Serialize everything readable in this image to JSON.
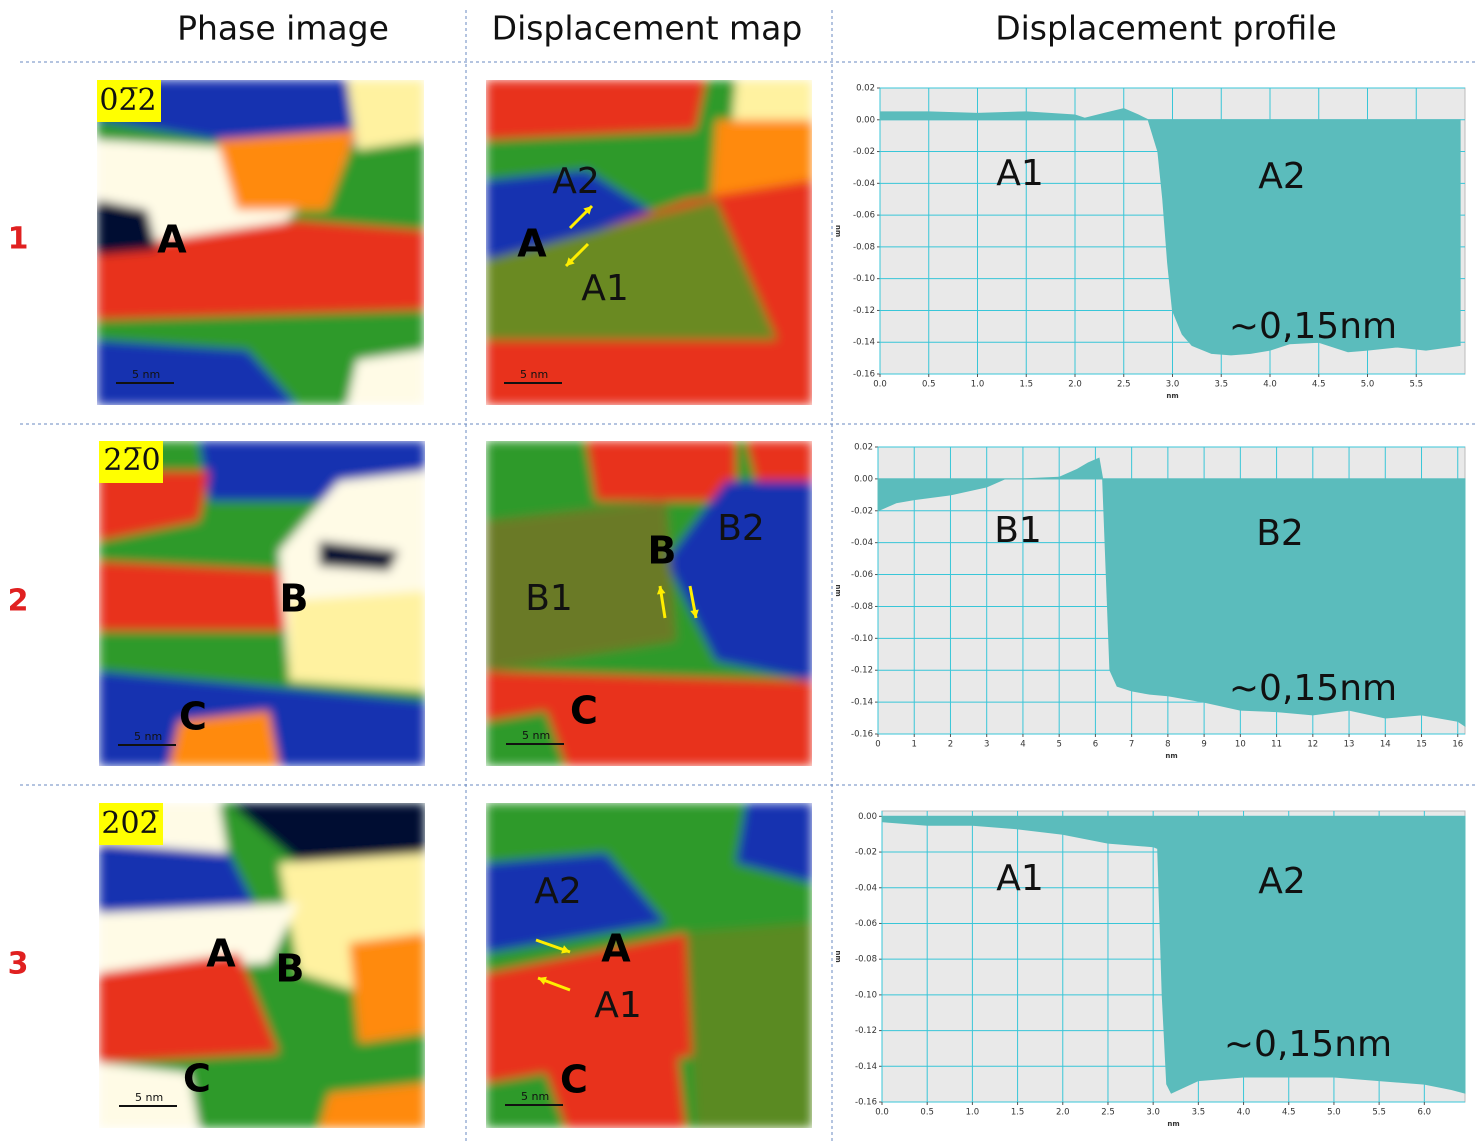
{
  "header": {
    "columns": [
      "Phase image",
      "Displacement map",
      "Displacement profile"
    ]
  },
  "rows": [
    {
      "label": "1",
      "phase_image": {
        "labels": [
          "02̅2",
          "A",
          "5 nm"
        ]
      },
      "displacement_map": {
        "labels": [
          "A2",
          "A",
          "A1",
          "5 nm"
        ]
      }
    },
    {
      "label": "2",
      "phase_image": {
        "labels": [
          "22̅0",
          "B",
          "C",
          "5 nm"
        ]
      },
      "displacement_map": {
        "labels": [
          "B2",
          "B",
          "B1",
          "C",
          "5 nm"
        ]
      }
    },
    {
      "label": "3",
      "phase_image": {
        "labels": [
          "202̅",
          "A",
          "B",
          "C",
          "5 nm"
        ]
      },
      "displacement_map": {
        "labels": [
          "A2",
          "A",
          "A1",
          "C",
          "5 nm"
        ]
      }
    }
  ],
  "chart_data": [
    {
      "type": "area",
      "color": "#5bbcbc",
      "grid": true,
      "x_label": "nm",
      "y_label": "nm",
      "annotations": [
        "A1",
        "A2",
        "~0,15nm"
      ],
      "x": [
        0,
        0.5,
        1.0,
        1.5,
        2.0,
        2.1,
        2.3,
        2.5,
        2.65,
        2.75,
        2.85,
        2.9,
        2.95,
        3.0,
        3.1,
        3.2,
        3.4,
        3.6,
        3.8,
        4.0,
        4.2,
        4.5,
        4.8,
        5.0,
        5.3,
        5.6,
        5.95
      ],
      "values": [
        0.005,
        0.005,
        0.004,
        0.005,
        0.003,
        0.001,
        0.004,
        0.007,
        0.003,
        0.0,
        -0.02,
        -0.05,
        -0.09,
        -0.12,
        -0.135,
        -0.142,
        -0.147,
        -0.148,
        -0.147,
        -0.145,
        -0.141,
        -0.14,
        -0.146,
        -0.145,
        -0.143,
        -0.145,
        -0.142
      ],
      "xlim": [
        0,
        6
      ],
      "ylim": [
        -0.16,
        0.02
      ],
      "xticks": [
        {
          "value": 0,
          "label": "0.0"
        },
        0.5,
        {
          "value": 1,
          "label": "1.0"
        },
        1.5,
        {
          "value": 2,
          "label": "2.0"
        },
        2.5,
        {
          "value": 3,
          "label": "3.0"
        },
        3.5,
        {
          "value": 4,
          "label": "4.0"
        },
        4.5,
        {
          "value": 5,
          "label": "5.0"
        },
        5.5
      ],
      "yticks": [
        0.02,
        {
          "value": 0,
          "label": "0.00"
        },
        -0.02,
        -0.04,
        -0.06,
        -0.08,
        {
          "value": -0.1,
          "label": "-0.10"
        },
        -0.12,
        -0.14,
        -0.16
      ]
    },
    {
      "type": "area",
      "color": "#5bbcbc",
      "grid": true,
      "x_label": "nm",
      "y_label": "nm",
      "annotations": [
        "B1",
        "B2",
        "~0,15nm"
      ],
      "x": [
        0,
        0.5,
        1,
        2,
        3,
        3.5,
        4,
        5,
        5.5,
        5.8,
        6.1,
        6.2,
        6.3,
        6.4,
        6.6,
        7,
        7.5,
        8,
        9,
        10,
        11,
        12,
        13,
        14,
        15,
        16,
        16.2
      ],
      "values": [
        -0.02,
        -0.015,
        -0.013,
        -0.01,
        -0.005,
        0.0,
        0.0,
        0.001,
        0.006,
        0.01,
        0.013,
        0.0,
        -0.06,
        -0.12,
        -0.13,
        -0.133,
        -0.135,
        -0.136,
        -0.14,
        -0.145,
        -0.146,
        -0.148,
        -0.145,
        -0.15,
        -0.148,
        -0.152,
        -0.155
      ],
      "xlim": [
        0,
        16.2
      ],
      "ylim": [
        -0.16,
        0.02
      ],
      "xticks": [
        0,
        1,
        2,
        3,
        4,
        5,
        6,
        7,
        8,
        9,
        10,
        11,
        12,
        13,
        14,
        15,
        16
      ],
      "yticks": [
        0.02,
        {
          "value": 0,
          "label": "0.00"
        },
        -0.02,
        -0.04,
        -0.06,
        -0.08,
        {
          "value": -0.1,
          "label": "-0.10"
        },
        -0.12,
        -0.14,
        -0.16
      ]
    },
    {
      "type": "area",
      "color": "#5bbcbc",
      "grid": true,
      "x_label": "nm",
      "y_label": "nm",
      "annotations": [
        "A1",
        "A2",
        "~0,15nm"
      ],
      "x": [
        0,
        0.5,
        1.0,
        1.5,
        2.0,
        2.5,
        3.0,
        3.05,
        3.1,
        3.15,
        3.2,
        3.5,
        4.0,
        4.5,
        5.0,
        5.5,
        6.0,
        6.3,
        6.45
      ],
      "values": [
        -0.003,
        -0.005,
        -0.005,
        -0.007,
        -0.01,
        -0.015,
        -0.017,
        -0.018,
        -0.1,
        -0.15,
        -0.155,
        -0.148,
        -0.146,
        -0.146,
        -0.146,
        -0.148,
        -0.15,
        -0.153,
        -0.155
      ],
      "xlim": [
        0,
        6.45
      ],
      "ylim": [
        -0.16,
        0.003
      ],
      "xticks": [
        {
          "value": 0,
          "label": "0.0"
        },
        0.5,
        {
          "value": 1,
          "label": "1.0"
        },
        1.5,
        {
          "value": 2,
          "label": "2.0"
        },
        2.5,
        {
          "value": 3,
          "label": "3.0"
        },
        3.5,
        {
          "value": 4,
          "label": "4.0"
        },
        4.5,
        {
          "value": 5,
          "label": "5.0"
        },
        5.5,
        {
          "value": 6,
          "label": "6.0"
        }
      ],
      "yticks": [
        {
          "value": 0,
          "label": "0.00"
        },
        -0.02,
        -0.04,
        -0.06,
        -0.08,
        {
          "value": -0.1,
          "label": "-0.10"
        },
        -0.12,
        -0.14,
        -0.16
      ]
    }
  ]
}
